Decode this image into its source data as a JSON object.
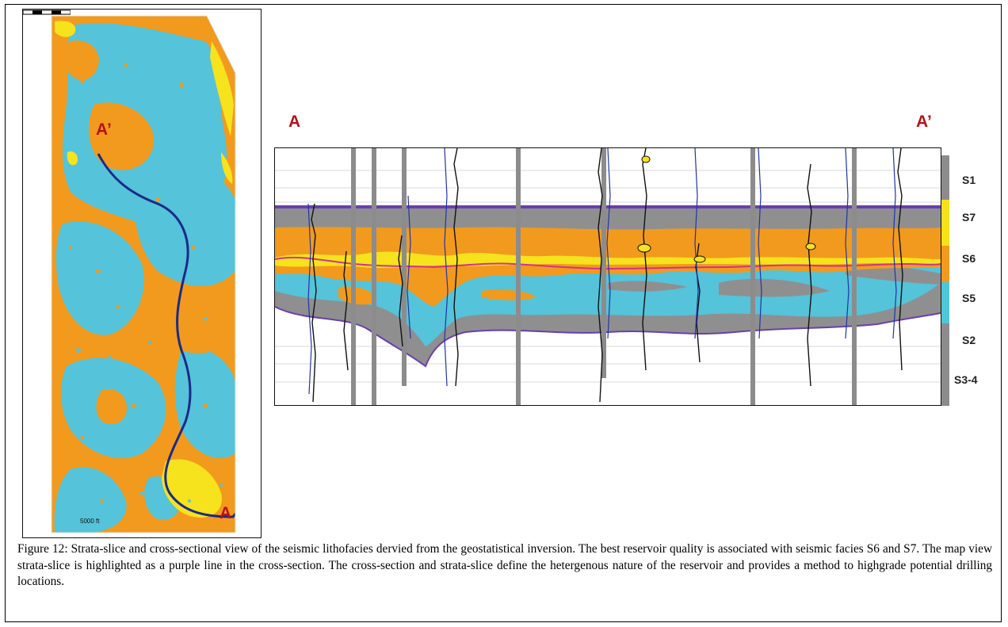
{
  "map_view": {
    "label_a": "A",
    "label_a_prime": "A’",
    "scale_text": "5000 ft"
  },
  "cross_section": {
    "label_a": "A",
    "label_a_prime": "A’"
  },
  "legend": [
    {
      "label": "S1",
      "color": "#8c8c8c"
    },
    {
      "label": "S7",
      "color": "#f7e11b"
    },
    {
      "label": "S6",
      "color": "#f29a1d"
    },
    {
      "label": "S5",
      "color": "#4fc6d8"
    },
    {
      "label": "S2",
      "color": "#8c8c8c"
    },
    {
      "label": "S3-4",
      "color": "#8c8c8c"
    }
  ],
  "colors": {
    "orange": "#f29a1d",
    "cyan": "#55c3d9",
    "yellow": "#f6e21d",
    "gray": "#8f8f8f",
    "navy": "#1a2a8a",
    "purple": "#6a3fb0",
    "magenta": "#d0338f",
    "label_red": "#b5121b"
  },
  "caption": "Figure 12:  Strata-slice and cross-sectional view of the seismic lithofacies dervied from the geostatistical inversion.  The best reservoir quality is associated with seismic facies S6 and S7.  The map view strata-slice is highlighted as a purple line in the cross-section.  The cross-section and strata-slice define the hetergenous nature of the reservoir and provides a method to highgrade potential drilling locations."
}
